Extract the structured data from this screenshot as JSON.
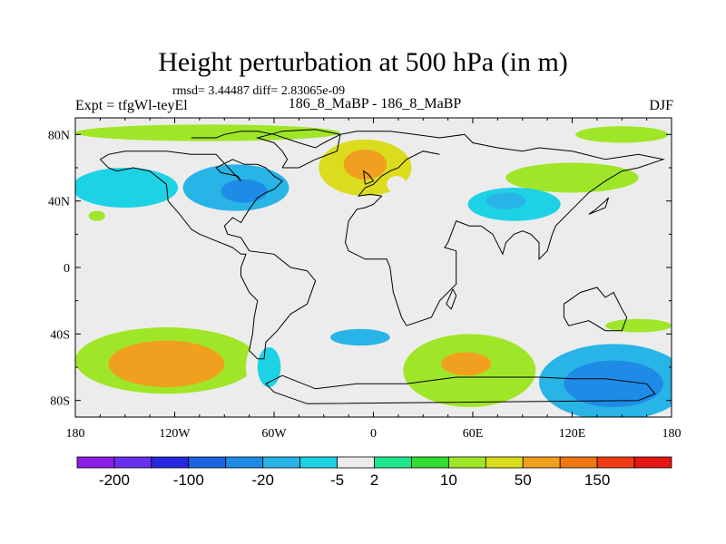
{
  "chart_data": {
    "type": "filled-contour-map",
    "title": "Height perturbation at 500 hPa (in m)",
    "stats_label": "rmsd= 3.44487 diff= 2.83065e-09",
    "left_label": "Expt = tfgWl-teyEl",
    "center_label": "186_8_MaBP - 186_8_MaBP",
    "right_label": "DJF",
    "season": "DJF",
    "level_hpa": 500,
    "units": "m",
    "rmsd": 3.44487,
    "diff": 2.83065e-09,
    "projection": "cylindrical-equidistant",
    "xlim": [
      -180,
      180
    ],
    "ylim": [
      -90,
      90
    ],
    "x_ticks": [
      {
        "value": -180,
        "label": "180"
      },
      {
        "value": -120,
        "label": "120W"
      },
      {
        "value": -60,
        "label": "60W"
      },
      {
        "value": 0,
        "label": "0"
      },
      {
        "value": 60,
        "label": "60E"
      },
      {
        "value": 120,
        "label": "120E"
      },
      {
        "value": 180,
        "label": "180"
      }
    ],
    "y_ticks": [
      {
        "value": 80,
        "label": "80N"
      },
      {
        "value": 40,
        "label": "40N"
      },
      {
        "value": 0,
        "label": "0"
      },
      {
        "value": -40,
        "label": "40S"
      },
      {
        "value": -80,
        "label": "80S"
      }
    ],
    "colorbar": {
      "colors": [
        "#8c1ee6",
        "#6a30f0",
        "#2828e0",
        "#1e64e0",
        "#1e8ce6",
        "#28b4e6",
        "#1ed2e6",
        "#ececec",
        "#1ee68c",
        "#32dc32",
        "#a0e628",
        "#dcdc1e",
        "#f0a01e",
        "#f07814",
        "#f03c14",
        "#e61414"
      ],
      "labeled_ticks": [
        {
          "value": -200,
          "label": "-200"
        },
        {
          "value": -100,
          "label": "-100"
        },
        {
          "value": -20,
          "label": "-20"
        },
        {
          "value": -5,
          "label": "-5"
        },
        {
          "value": 2,
          "label": "2"
        },
        {
          "value": 10,
          "label": "10"
        },
        {
          "value": 50,
          "label": "50"
        },
        {
          "value": 150,
          "label": "150"
        }
      ]
    },
    "anomaly_regions": [
      {
        "lon": -150,
        "lat": 48,
        "rlon": 32,
        "rlat": 12,
        "value": -10
      },
      {
        "lon": -83,
        "lat": 48,
        "rlon": 32,
        "rlat": 14,
        "value": -20
      },
      {
        "lon": -78,
        "lat": 46,
        "rlon": 14,
        "rlat": 7,
        "value": -50
      },
      {
        "lon": -47,
        "lat": 33,
        "rlon": 14,
        "rlat": 5,
        "value": -5
      },
      {
        "lon": -5,
        "lat": 60,
        "rlon": 28,
        "rlat": 17,
        "value": 10
      },
      {
        "lon": -5,
        "lat": 62,
        "rlon": 13,
        "rlat": 9,
        "value": 40
      },
      {
        "lon": -100,
        "lat": 81,
        "rlon": 80,
        "rlat": 5,
        "value": 6
      },
      {
        "lon": 150,
        "lat": 80,
        "rlon": 28,
        "rlat": 5,
        "value": 6
      },
      {
        "lon": 120,
        "lat": 54,
        "rlon": 40,
        "rlat": 9,
        "value": 8
      },
      {
        "lon": 14,
        "lat": 50,
        "rlon": 6,
        "rlat": 5,
        "value": -5
      },
      {
        "lon": 85,
        "lat": 38,
        "rlon": 28,
        "rlat": 10,
        "value": -10
      },
      {
        "lon": 80,
        "lat": 40,
        "rlon": 12,
        "rlat": 5,
        "value": -20
      },
      {
        "lon": 45,
        "lat": 51,
        "rlon": 9,
        "rlat": 5,
        "value": -5
      },
      {
        "lon": -167,
        "lat": 31,
        "rlon": 5,
        "rlat": 3,
        "value": 6
      },
      {
        "lon": -125,
        "lat": -56,
        "rlon": 55,
        "rlat": 20,
        "value": 6
      },
      {
        "lon": -125,
        "lat": -58,
        "rlon": 35,
        "rlat": 14,
        "value": 20
      },
      {
        "lon": -65,
        "lat": -60,
        "rlon": 12,
        "rlat": 18,
        "value": -5
      },
      {
        "lon": -63,
        "lat": -60,
        "rlon": 7,
        "rlat": 12,
        "value": -10
      },
      {
        "lon": -5,
        "lat": -42,
        "rlon": 38,
        "rlat": 10,
        "value": -5
      },
      {
        "lon": -8,
        "lat": -42,
        "rlon": 18,
        "rlat": 5,
        "value": -20
      },
      {
        "lon": 0,
        "lat": -66,
        "rlon": 30,
        "rlat": 10,
        "value": -5
      },
      {
        "lon": 58,
        "lat": -62,
        "rlon": 40,
        "rlat": 22,
        "value": 8
      },
      {
        "lon": 56,
        "lat": -58,
        "rlon": 15,
        "rlat": 7,
        "value": 30
      },
      {
        "lon": 145,
        "lat": -69,
        "rlon": 45,
        "rlat": 23,
        "value": -20
      },
      {
        "lon": 145,
        "lat": -70,
        "rlon": 30,
        "rlat": 14,
        "value": -50
      },
      {
        "lon": 160,
        "lat": -35,
        "rlon": 20,
        "rlat": 4,
        "value": 6
      },
      {
        "lon": -180,
        "lat": -36,
        "rlon": 6,
        "rlat": 5,
        "value": -5
      },
      {
        "lon": -180,
        "lat": -78,
        "rlon": 5,
        "rlat": 5,
        "value": -5
      },
      {
        "lon": 70,
        "lat": -20,
        "rlon": 6,
        "rlat": 3,
        "value": -5
      }
    ],
    "coastline": [
      [
        [
          -110,
          78
        ],
        [
          -95,
          78
        ],
        [
          -90,
          80
        ],
        [
          -80,
          82
        ],
        [
          -70,
          82
        ],
        [
          -60,
          80
        ],
        [
          -45,
          75
        ],
        [
          -35,
          72
        ],
        [
          -30,
          75
        ],
        [
          -20,
          80
        ],
        [
          -10,
          82
        ],
        [
          10,
          82
        ],
        [
          25,
          80
        ],
        [
          40,
          78
        ],
        [
          55,
          80
        ],
        [
          60,
          75
        ],
        [
          75,
          72
        ],
        [
          90,
          70
        ],
        [
          100,
          72
        ],
        [
          120,
          70
        ],
        [
          140,
          65
        ],
        [
          160,
          68
        ],
        [
          175,
          65
        ],
        [
          160,
          60
        ],
        [
          150,
          58
        ],
        [
          140,
          52
        ],
        [
          130,
          45
        ],
        [
          125,
          40
        ],
        [
          120,
          35
        ],
        [
          110,
          25
        ],
        [
          108,
          20
        ],
        [
          105,
          10
        ],
        [
          100,
          5
        ],
        [
          100,
          15
        ],
        [
          95,
          20
        ],
        [
          90,
          22
        ],
        [
          85,
          20
        ],
        [
          80,
          15
        ],
        [
          78,
          8
        ],
        [
          72,
          20
        ],
        [
          65,
          25
        ],
        [
          58,
          25
        ],
        [
          50,
          28
        ],
        [
          45,
          15
        ],
        [
          43,
          12
        ],
        [
          50,
          10
        ],
        [
          50,
          -10
        ],
        [
          40,
          -20
        ],
        [
          35,
          -30
        ],
        [
          20,
          -35
        ],
        [
          17,
          -30
        ],
        [
          12,
          -15
        ],
        [
          10,
          0
        ],
        [
          8,
          5
        ],
        [
          -5,
          5
        ],
        [
          -15,
          10
        ],
        [
          -17,
          15
        ],
        [
          -15,
          28
        ],
        [
          -10,
          35
        ],
        [
          -5,
          36
        ],
        [
          0,
          38
        ],
        [
          5,
          43
        ],
        [
          -2,
          44
        ],
        [
          -9,
          43
        ],
        [
          -5,
          48
        ],
        [
          0,
          50
        ],
        [
          5,
          55
        ],
        [
          10,
          58
        ],
        [
          15,
          60
        ],
        [
          20,
          65
        ],
        [
          30,
          70
        ],
        [
          40,
          68
        ]
      ],
      [
        [
          -165,
          65
        ],
        [
          -160,
          60
        ],
        [
          -155,
          58
        ],
        [
          -145,
          60
        ],
        [
          -135,
          58
        ],
        [
          -125,
          50
        ],
        [
          -124,
          40
        ],
        [
          -117,
          32
        ],
        [
          -110,
          23
        ],
        [
          -105,
          20
        ],
        [
          -95,
          16
        ],
        [
          -85,
          12
        ],
        [
          -80,
          8
        ],
        [
          -77,
          8
        ],
        [
          -80,
          0
        ],
        [
          -80,
          -5
        ],
        [
          -75,
          -15
        ],
        [
          -70,
          -20
        ],
        [
          -72,
          -30
        ],
        [
          -73,
          -40
        ],
        [
          -75,
          -50
        ],
        [
          -70,
          -55
        ],
        [
          -66,
          -55
        ],
        [
          -65,
          -45
        ],
        [
          -58,
          -38
        ],
        [
          -50,
          -28
        ],
        [
          -40,
          -22
        ],
        [
          -35,
          -8
        ],
        [
          -40,
          -2
        ],
        [
          -50,
          0
        ],
        [
          -60,
          8
        ],
        [
          -75,
          10
        ],
        [
          -80,
          18
        ],
        [
          -88,
          20
        ],
        [
          -90,
          25
        ],
        [
          -85,
          30
        ],
        [
          -80,
          27
        ],
        [
          -75,
          35
        ],
        [
          -70,
          42
        ],
        [
          -65,
          45
        ],
        [
          -60,
          47
        ],
        [
          -55,
          52
        ],
        [
          -60,
          55
        ],
        [
          -65,
          60
        ],
        [
          -70,
          62
        ],
        [
          -78,
          62
        ],
        [
          -85,
          65
        ],
        [
          -95,
          60
        ],
        [
          -92,
          57
        ],
        [
          -82,
          55
        ],
        [
          -80,
          52
        ],
        [
          -95,
          68
        ],
        [
          -110,
          68
        ],
        [
          -125,
          70
        ],
        [
          -140,
          70
        ],
        [
          -150,
          70
        ],
        [
          -160,
          68
        ],
        [
          -165,
          65
        ]
      ],
      [
        [
          -55,
          60
        ],
        [
          -45,
          60
        ],
        [
          -35,
          65
        ],
        [
          -22,
          70
        ],
        [
          -20,
          80
        ],
        [
          -35,
          83
        ],
        [
          -55,
          82
        ],
        [
          -70,
          78
        ],
        [
          -60,
          75
        ],
        [
          -55,
          70
        ],
        [
          -52,
          65
        ],
        [
          -55,
          60
        ]
      ],
      [
        [
          -55,
          -65
        ],
        [
          -35,
          -73
        ],
        [
          -10,
          -70
        ],
        [
          20,
          -70
        ],
        [
          50,
          -66
        ],
        [
          80,
          -66
        ],
        [
          100,
          -66
        ],
        [
          120,
          -67
        ],
        [
          140,
          -67
        ],
        [
          165,
          -70
        ],
        [
          170,
          -76
        ],
        [
          160,
          -80
        ],
        [
          -40,
          -82
        ],
        [
          -60,
          -75
        ],
        [
          -65,
          -70
        ],
        [
          -55,
          -65
        ]
      ],
      [
        [
          115,
          -22
        ],
        [
          125,
          -15
        ],
        [
          135,
          -12
        ],
        [
          140,
          -18
        ],
        [
          145,
          -15
        ],
        [
          150,
          -25
        ],
        [
          153,
          -30
        ],
        [
          150,
          -38
        ],
        [
          140,
          -38
        ],
        [
          130,
          -32
        ],
        [
          118,
          -35
        ],
        [
          115,
          -30
        ],
        [
          115,
          -22
        ]
      ],
      [
        [
          48,
          -13
        ],
        [
          50,
          -17
        ],
        [
          47,
          -25
        ],
        [
          44,
          -22
        ],
        [
          48,
          -13
        ]
      ],
      [
        [
          130,
          32
        ],
        [
          135,
          34
        ],
        [
          140,
          36
        ],
        [
          142,
          42
        ],
        [
          140,
          40
        ],
        [
          133,
          34
        ],
        [
          130,
          32
        ]
      ],
      [
        [
          -5,
          50
        ],
        [
          0,
          52
        ],
        [
          -3,
          56
        ],
        [
          -6,
          58
        ],
        [
          -5,
          50
        ]
      ]
    ]
  }
}
